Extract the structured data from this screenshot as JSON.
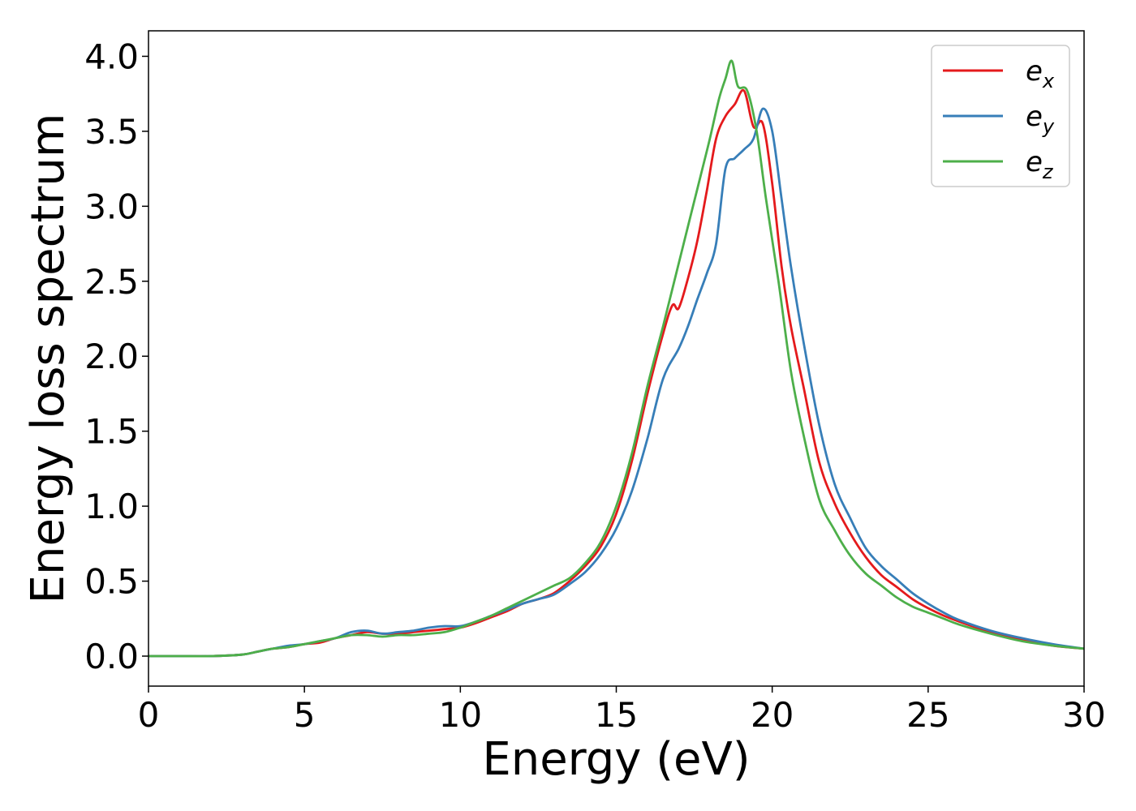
{
  "chart_data": {
    "type": "line",
    "title": "",
    "xlabel": "Energy (eV)",
    "ylabel": "Energy loss spectrum",
    "xlim": [
      0,
      30
    ],
    "ylim": [
      -0.2,
      4.17
    ],
    "xticks": [
      0,
      5,
      10,
      15,
      20,
      25,
      30
    ],
    "xtick_labels": [
      "0",
      "5",
      "10",
      "15",
      "20",
      "25",
      "30"
    ],
    "yticks": [
      0.0,
      0.5,
      1.0,
      1.5,
      2.0,
      2.5,
      3.0,
      3.5,
      4.0
    ],
    "ytick_labels": [
      "0.0",
      "0.5",
      "1.0",
      "1.5",
      "2.0",
      "2.5",
      "3.0",
      "3.5",
      "4.0"
    ],
    "grid": false,
    "legend_position": "top-right",
    "series": [
      {
        "name": "e_x",
        "label_base": "e",
        "label_sub": "x",
        "color": "#e41a1c",
        "x": [
          0,
          1,
          2,
          3,
          3.5,
          4,
          4.5,
          5,
          5.5,
          6,
          6.5,
          7,
          7.5,
          8,
          8.5,
          9,
          9.5,
          10,
          10.5,
          11,
          11.5,
          12,
          12.5,
          13,
          13.5,
          14,
          14.5,
          15,
          15.5,
          16,
          16.5,
          16.8,
          17,
          17.3,
          17.6,
          17.9,
          18.2,
          18.5,
          18.8,
          19.1,
          19.4,
          19.7,
          20,
          20.3,
          20.6,
          21,
          21.5,
          22,
          22.5,
          23,
          23.5,
          24,
          24.5,
          25,
          25.5,
          26,
          27,
          28,
          29,
          30
        ],
        "y": [
          0.0,
          0.0,
          0.0,
          0.01,
          0.03,
          0.05,
          0.06,
          0.08,
          0.09,
          0.12,
          0.14,
          0.16,
          0.15,
          0.15,
          0.16,
          0.17,
          0.18,
          0.19,
          0.22,
          0.26,
          0.3,
          0.35,
          0.38,
          0.42,
          0.5,
          0.6,
          0.73,
          0.95,
          1.3,
          1.75,
          2.15,
          2.34,
          2.32,
          2.52,
          2.77,
          3.1,
          3.45,
          3.6,
          3.68,
          3.77,
          3.53,
          3.55,
          3.15,
          2.6,
          2.2,
          1.8,
          1.3,
          1.02,
          0.82,
          0.66,
          0.54,
          0.46,
          0.38,
          0.32,
          0.27,
          0.23,
          0.16,
          0.11,
          0.07,
          0.05
        ]
      },
      {
        "name": "e_y",
        "label_base": "e",
        "label_sub": "y",
        "color": "#377eb8",
        "x": [
          0,
          1,
          2,
          3,
          3.5,
          4,
          4.5,
          5,
          5.5,
          6,
          6.5,
          7,
          7.5,
          8,
          8.5,
          9,
          9.5,
          10,
          10.5,
          11,
          11.5,
          12,
          12.5,
          13,
          13.5,
          14,
          14.5,
          15,
          15.5,
          16,
          16.5,
          17,
          17.3,
          17.6,
          17.9,
          18.2,
          18.5,
          18.8,
          19.1,
          19.4,
          19.7,
          20,
          20.3,
          20.6,
          21,
          21.5,
          22,
          22.5,
          23,
          23.5,
          24,
          24.5,
          25,
          25.5,
          26,
          27,
          28,
          29,
          30
        ],
        "y": [
          0.0,
          0.0,
          0.0,
          0.01,
          0.03,
          0.05,
          0.07,
          0.08,
          0.1,
          0.12,
          0.16,
          0.17,
          0.15,
          0.16,
          0.17,
          0.19,
          0.2,
          0.2,
          0.23,
          0.27,
          0.31,
          0.35,
          0.38,
          0.41,
          0.48,
          0.56,
          0.68,
          0.85,
          1.1,
          1.45,
          1.85,
          2.05,
          2.2,
          2.38,
          2.55,
          2.75,
          3.25,
          3.32,
          3.38,
          3.45,
          3.65,
          3.5,
          3.05,
          2.6,
          2.1,
          1.55,
          1.15,
          0.92,
          0.72,
          0.6,
          0.51,
          0.42,
          0.35,
          0.29,
          0.24,
          0.17,
          0.12,
          0.08,
          0.05
        ]
      },
      {
        "name": "e_z",
        "label_base": "e",
        "label_sub": "z",
        "color": "#4daf4a",
        "x": [
          0,
          1,
          2,
          3,
          3.5,
          4,
          4.5,
          5,
          5.5,
          6,
          6.5,
          7,
          7.5,
          8,
          8.5,
          9,
          9.5,
          10,
          10.5,
          11,
          11.5,
          12,
          12.5,
          13,
          13.5,
          14,
          14.5,
          15,
          15.5,
          16,
          16.5,
          16.8,
          17.1,
          17.4,
          17.7,
          18,
          18.3,
          18.5,
          18.7,
          18.9,
          19.2,
          19.5,
          19.8,
          20.2,
          20.6,
          21,
          21.5,
          22,
          22.5,
          23,
          23.5,
          24,
          24.5,
          25,
          25.5,
          26,
          27,
          28,
          29,
          30
        ],
        "y": [
          0.0,
          0.0,
          0.0,
          0.01,
          0.03,
          0.05,
          0.06,
          0.08,
          0.1,
          0.12,
          0.14,
          0.14,
          0.13,
          0.14,
          0.14,
          0.15,
          0.16,
          0.19,
          0.23,
          0.27,
          0.32,
          0.37,
          0.42,
          0.47,
          0.52,
          0.62,
          0.76,
          1.0,
          1.35,
          1.8,
          2.2,
          2.45,
          2.7,
          2.95,
          3.2,
          3.45,
          3.72,
          3.85,
          3.97,
          3.8,
          3.77,
          3.5,
          3.05,
          2.5,
          1.9,
          1.48,
          1.05,
          0.84,
          0.67,
          0.55,
          0.47,
          0.39,
          0.33,
          0.29,
          0.25,
          0.21,
          0.15,
          0.1,
          0.07,
          0.05
        ]
      }
    ]
  }
}
